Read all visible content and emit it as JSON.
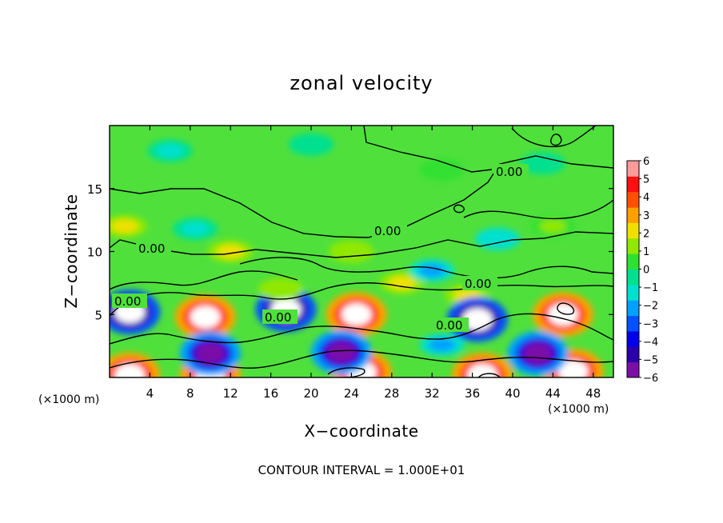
{
  "chart_data": {
    "type": "heatmap",
    "title": "zonal velocity",
    "xlabel": "X−coordinate",
    "ylabel": "Z−coordinate",
    "x_unit_label": "(×1000 m)",
    "xlim": [
      0,
      50
    ],
    "ylim": [
      0,
      20
    ],
    "x_ticks": [
      4,
      8,
      12,
      16,
      20,
      24,
      28,
      32,
      36,
      40,
      44,
      48
    ],
    "y_ticks": [
      5,
      10,
      15
    ],
    "colorbar": {
      "range": [
        -6,
        6
      ],
      "ticks": [
        6,
        5,
        4,
        3,
        2,
        1,
        0,
        -1,
        -2,
        -3,
        -4,
        -5,
        -6
      ],
      "tick_labels": [
        "6",
        "5",
        "4",
        "3",
        "2",
        "1",
        "0",
        "−1",
        "−2",
        "−3",
        "−4",
        "−5",
        "−6"
      ],
      "colors": [
        "#7a0fa8",
        "#2b00a8",
        "#0000e6",
        "#0052ff",
        "#00a0ff",
        "#00e0d0",
        "#00e090",
        "#30e030",
        "#90e800",
        "#f0e000",
        "#ffa000",
        "#ff5000",
        "#ff1010",
        "#ff9a9a"
      ]
    },
    "contour_label": "0.00",
    "footer": "CONTOUR INTERVAL = 1.000E+01",
    "features": [
      {
        "kind": "max",
        "x": 9.5,
        "z": 4.8,
        "value": 6
      },
      {
        "kind": "max",
        "x": 24.5,
        "z": 5.0,
        "value": 6
      },
      {
        "kind": "max",
        "x": 45.0,
        "z": 5.0,
        "value": 6
      },
      {
        "kind": "max",
        "x": 35.5,
        "z": 6.5,
        "value": 3
      },
      {
        "kind": "min",
        "x": 36.5,
        "z": 4.6,
        "value": -6
      },
      {
        "kind": "min",
        "x": 17.5,
        "z": 5.4,
        "value": -6
      },
      {
        "kind": "min",
        "x": 2.0,
        "z": 5.2,
        "value": -6
      },
      {
        "kind": "max",
        "x": 10.0,
        "z": 0.2,
        "value": 6
      },
      {
        "kind": "max",
        "x": 25.0,
        "z": 0.4,
        "value": 6
      },
      {
        "kind": "max",
        "x": 37.0,
        "z": 0.2,
        "value": 6
      },
      {
        "kind": "max",
        "x": 46.0,
        "z": 0.5,
        "value": 6
      },
      {
        "kind": "max",
        "x": 2.0,
        "z": 0.2,
        "value": 6
      },
      {
        "kind": "min",
        "x": 10.0,
        "z": 1.9,
        "value": -5
      },
      {
        "kind": "min",
        "x": 23.0,
        "z": 2.0,
        "value": -5
      },
      {
        "kind": "min",
        "x": 42.5,
        "z": 1.9,
        "value": -5
      },
      {
        "kind": "min",
        "x": 33.0,
        "z": 2.6,
        "value": -3
      },
      {
        "kind": "max",
        "x": 17.0,
        "z": 7.0,
        "value": 2
      },
      {
        "kind": "max",
        "x": 29.0,
        "z": 7.5,
        "value": 3
      },
      {
        "kind": "max",
        "x": 1.5,
        "z": 12.0,
        "value": 3
      },
      {
        "kind": "max",
        "x": 12.0,
        "z": 10.0,
        "value": 2.5
      },
      {
        "kind": "max",
        "x": 24.0,
        "z": 10.0,
        "value": 2
      },
      {
        "kind": "min",
        "x": 32.0,
        "z": 8.5,
        "value": -3
      },
      {
        "kind": "min",
        "x": 38.5,
        "z": 11.0,
        "value": -2
      },
      {
        "kind": "max",
        "x": 44.0,
        "z": 12.0,
        "value": 1.5
      },
      {
        "kind": "min",
        "x": 8.5,
        "z": 11.8,
        "value": -1.5
      },
      {
        "kind": "min",
        "x": 6.0,
        "z": 18.0,
        "value": -1.2
      },
      {
        "kind": "min",
        "x": 20.0,
        "z": 18.5,
        "value": -1.0
      },
      {
        "kind": "min",
        "x": 43.0,
        "z": 17.0,
        "value": -1.0
      },
      {
        "kind": "max",
        "x": 33.0,
        "z": 16.5,
        "value": 0.9
      }
    ]
  }
}
